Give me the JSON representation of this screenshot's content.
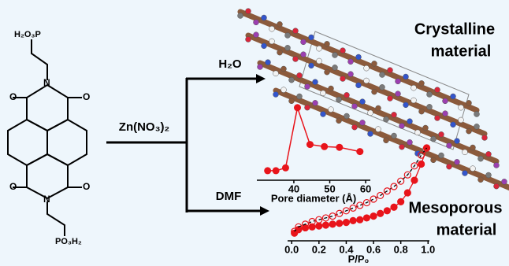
{
  "reactant": {
    "top_group": "H₂O₃P",
    "bottom_group": "PO₃H₂",
    "atoms": [
      "O",
      "O",
      "O",
      "O",
      "N",
      "N"
    ]
  },
  "reagent": "Zn(NO₃)₂",
  "conditions": [
    "H₂O",
    "DMF"
  ],
  "products": [
    {
      "lines": [
        "Crystalline",
        "material"
      ]
    },
    {
      "lines": [
        "Mesoporous",
        "material"
      ]
    }
  ],
  "pore_chart": {
    "type": "scatter",
    "x_label": "Pore diameter (Å)",
    "x": [
      32.7,
      35,
      37.7,
      41,
      44.5,
      48.5,
      52.7,
      58.4
    ],
    "values": [
      0.09,
      0.09,
      0.13,
      0.98,
      0.46,
      0.43,
      0.42,
      0.36
    ],
    "xlim": [
      29.7,
      61.3
    ],
    "xticks": [
      40,
      50,
      60
    ],
    "ylim": [
      0,
      1
    ],
    "color": "#e8141b"
  },
  "isotherm_chart": {
    "type": "line",
    "x_label": "P/P₀",
    "x": [
      0.02,
      0.05,
      0.1,
      0.15,
      0.2,
      0.25,
      0.3,
      0.35,
      0.4,
      0.45,
      0.5,
      0.55,
      0.6,
      0.65,
      0.7,
      0.75,
      0.8,
      0.85,
      0.9,
      0.95,
      0.99
    ],
    "series": [
      {
        "color": "#e8141b",
        "values": [
          0.05,
          0.09,
          0.11,
          0.12,
          0.13,
          0.14,
          0.15,
          0.16,
          0.17,
          0.19,
          0.2,
          0.22,
          0.24,
          0.27,
          0.3,
          0.34,
          0.4,
          0.5,
          0.64,
          0.82,
          1.0
        ]
      },
      {
        "color": "#000000",
        "values": [
          0.07,
          0.12,
          0.15,
          0.18,
          0.2,
          0.22,
          0.24,
          0.27,
          0.3,
          0.33,
          0.36,
          0.39,
          0.43,
          0.47,
          0.52,
          0.57,
          0.63,
          0.7,
          0.8,
          0.92,
          1.0
        ]
      }
    ],
    "xlim": [
      -0.03,
      1.01
    ],
    "xticks": [
      {
        "value": 0,
        "label": "0.0"
      },
      0.2,
      0.4,
      0.6,
      0.8,
      {
        "value": 1,
        "label": "1.0"
      }
    ],
    "ylim": [
      0,
      1
    ]
  }
}
